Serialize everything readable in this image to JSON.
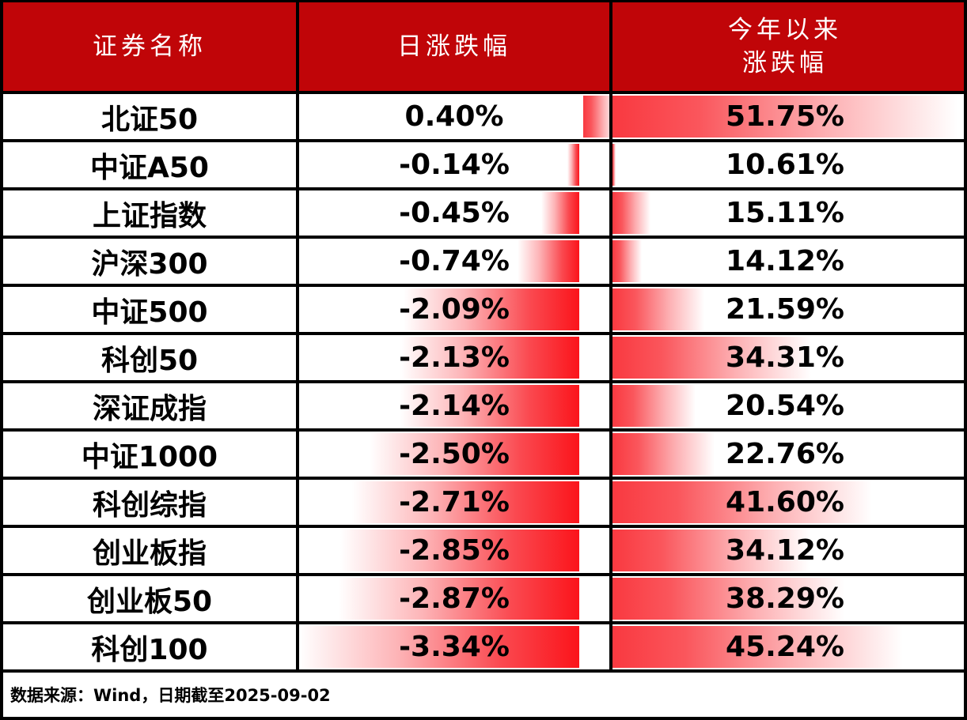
{
  "header": {
    "col1": "证券名称",
    "col2": "日涨跌幅",
    "col3_line1": "今年以来",
    "col3_line2": "涨跌幅"
  },
  "footer": {
    "source_note": "数据来源：Wind，日期截至2025-09-02"
  },
  "colors": {
    "header_bg": "#c00508",
    "bar_red_solid": "#fb141b",
    "bar_red_light": "#fa565c",
    "border": "#000000",
    "header_text": "#ffffff",
    "body_text": "#000000"
  },
  "chart_data": {
    "type": "table",
    "title": "",
    "columns": [
      "证券名称",
      "日涨跌幅",
      "今年以来涨跌幅"
    ],
    "rows": [
      {
        "name": "北证50",
        "daily": 0.4,
        "daily_label": "0.40%",
        "ytd": 51.75,
        "ytd_label": "51.75%"
      },
      {
        "name": "中证A50",
        "daily": -0.14,
        "daily_label": "-0.14%",
        "ytd": 10.61,
        "ytd_label": "10.61%"
      },
      {
        "name": "上证指数",
        "daily": -0.45,
        "daily_label": "-0.45%",
        "ytd": 15.11,
        "ytd_label": "15.11%"
      },
      {
        "name": "沪深300",
        "daily": -0.74,
        "daily_label": "-0.74%",
        "ytd": 14.12,
        "ytd_label": "14.12%"
      },
      {
        "name": "中证500",
        "daily": -2.09,
        "daily_label": "-2.09%",
        "ytd": 21.59,
        "ytd_label": "21.59%"
      },
      {
        "name": "科创50",
        "daily": -2.13,
        "daily_label": "-2.13%",
        "ytd": 34.31,
        "ytd_label": "34.31%"
      },
      {
        "name": "深证成指",
        "daily": -2.14,
        "daily_label": "-2.14%",
        "ytd": 20.54,
        "ytd_label": "20.54%"
      },
      {
        "name": "中证1000",
        "daily": -2.5,
        "daily_label": "-2.50%",
        "ytd": 22.76,
        "ytd_label": "22.76%"
      },
      {
        "name": "科创综指",
        "daily": -2.71,
        "daily_label": "-2.71%",
        "ytd": 41.6,
        "ytd_label": "41.60%"
      },
      {
        "name": "创业板指",
        "daily": -2.85,
        "daily_label": "-2.85%",
        "ytd": 34.12,
        "ytd_label": "34.12%"
      },
      {
        "name": "创业板50",
        "daily": -2.87,
        "daily_label": "-2.87%",
        "ytd": 38.29,
        "ytd_label": "38.29%"
      },
      {
        "name": "科创100",
        "daily": -3.34,
        "daily_label": "-3.34%",
        "ytd": 45.24,
        "ytd_label": "45.24%"
      }
    ],
    "databar_scales": {
      "daily": {
        "min": -3.34,
        "max": 0.4,
        "bar_direction": "negative-left-of-axis"
      },
      "ytd": {
        "min": 10.61,
        "max": 51.75,
        "bar_direction": "left-to-right"
      }
    },
    "legend": "none",
    "grid": "black cell borders"
  }
}
